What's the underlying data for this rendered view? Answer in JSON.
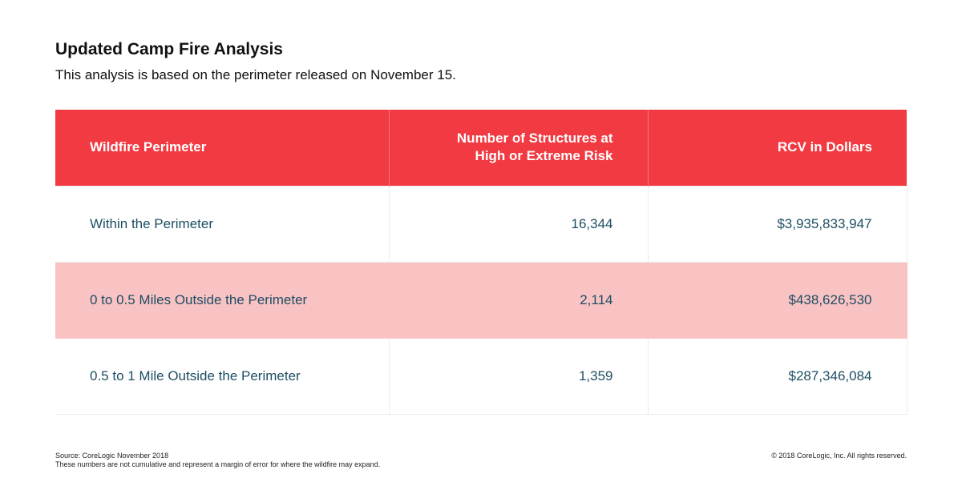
{
  "header": {
    "title": "Updated Camp Fire Analysis",
    "subtitle": "This analysis is based on the perimeter released on November 15."
  },
  "table": {
    "columns": [
      "Wildfire Perimeter",
      "Number of Structures at High or Extreme Risk",
      "RCV in Dollars"
    ],
    "rows": [
      [
        "Within the Perimeter",
        "16,344",
        "$3,935,833,947"
      ],
      [
        "0 to 0.5 Miles Outside the Perimeter",
        "2,114",
        "$438,626,530"
      ],
      [
        "0.5 to 1 Mile Outside the Perimeter",
        "1,359",
        "$287,346,084"
      ]
    ]
  },
  "footer": {
    "source": "Source: CoreLogic November 2018",
    "note": "These numbers are not cumulative and represent a margin of error for where the wildfire may expand.",
    "copyright": "© 2018 CoreLogic, Inc. All rights reserved."
  }
}
